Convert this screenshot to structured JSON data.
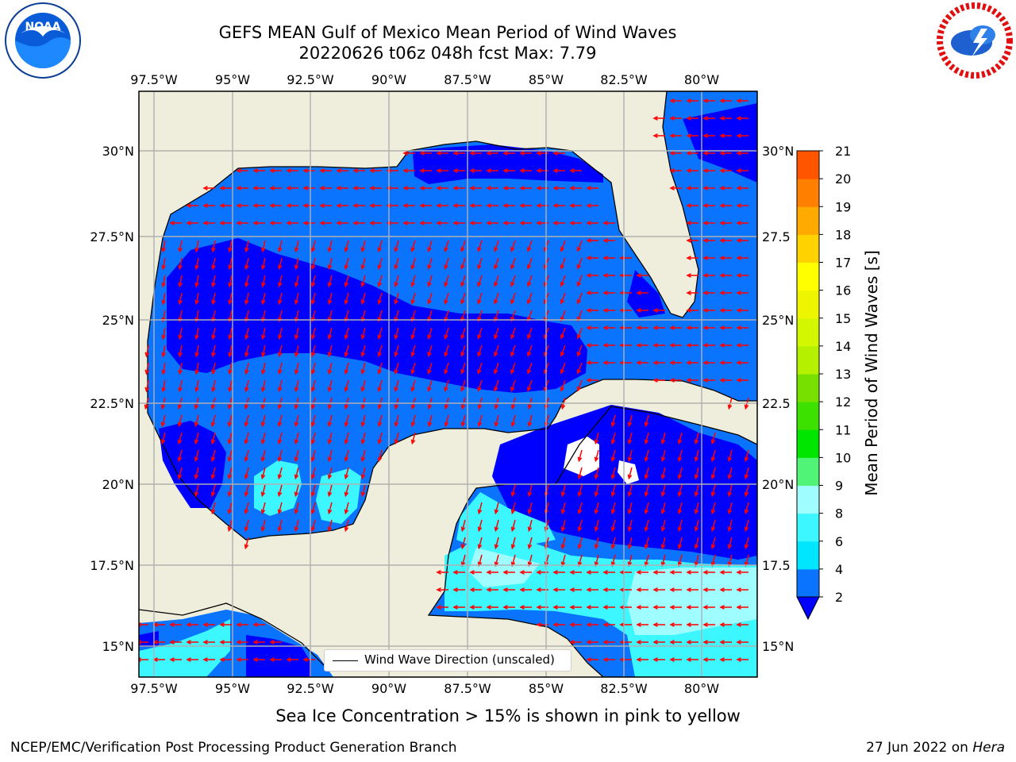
{
  "header": {
    "title_line1": "GEFS MEAN Gulf of Mexico Mean Period of Wind Waves",
    "title_line2": "20220626 t06z 048h fcst   Max: 7.79"
  },
  "logos": {
    "left": {
      "name": "NOAA",
      "icon": "noaa-logo",
      "text": "NOAA"
    },
    "right": {
      "name": "National Weather Service",
      "icon": "nws-logo"
    }
  },
  "map": {
    "lon_ticks": [
      "97.5°W",
      "95°W",
      "92.5°W",
      "90°W",
      "87.5°W",
      "85°W",
      "82.5°W",
      "80°W"
    ],
    "lat_ticks_left": [
      "30°N",
      "27.5°N",
      "25°N",
      "22.5°N",
      "20°N",
      "17.5°N",
      "15°N"
    ],
    "lat_ticks_right": [
      "30°N",
      "27.5",
      "25°N",
      "22.5",
      "20°N",
      "17.5",
      "15°N"
    ],
    "legend_label": "Wind Wave Direction (unscaled)",
    "colors": {
      "land": "#efeedd",
      "ocean_white": "#ffffff",
      "arrow": "#ff0000",
      "grid": "#b0b0b0"
    }
  },
  "colorbar": {
    "title": "Mean Period of Wind Waves [s]",
    "labels": [
      "2",
      "4",
      "6",
      "8",
      "9",
      "10",
      "11",
      "12",
      "13",
      "14",
      "15",
      "16",
      "17",
      "18",
      "19",
      "20",
      "21"
    ],
    "colors": [
      "#0a74ff",
      "#00e6ff",
      "#3cf7ff",
      "#9ffcff",
      "#50f577",
      "#00e600",
      "#3ce100",
      "#78e000",
      "#b4f000",
      "#d2f700",
      "#eef500",
      "#ffff00",
      "#ffd200",
      "#ffaa00",
      "#ff7f00",
      "#ff5500",
      "#ff2a00",
      "#ff0000"
    ],
    "under_color": "#0000ff"
  },
  "footer": {
    "sea_ice_note": "Sea Ice Concentration > 15% is shown in pink to yellow",
    "left": "NCEP/EMC/Verification Post Processing Product Generation Branch",
    "right_prefix": "27 Jun 2022 on ",
    "right_host": "Hera"
  }
}
